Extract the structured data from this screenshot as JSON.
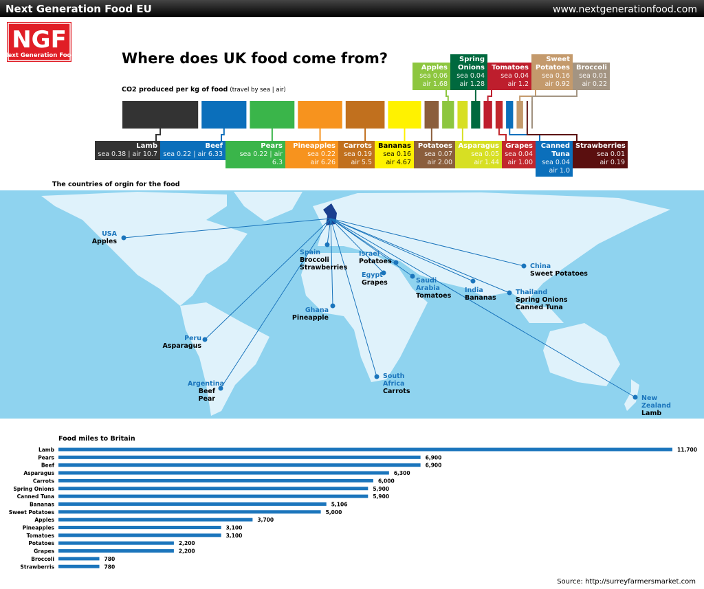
{
  "header": {
    "title": "Next Generation Food EU",
    "url": "www.nextgenerationfood.com"
  },
  "logo": {
    "abbr": "NGF",
    "name": "Next Generation Food"
  },
  "title": "Where does UK food come from?",
  "co2": {
    "heading": "CO2 produced per kg of food",
    "note": "(travel by sea | air)",
    "foods": [
      {
        "name": "Lamb",
        "color": "#333333",
        "air": 10.7,
        "lines": [
          "sea 0.38 | air 10.7"
        ]
      },
      {
        "name": "Beef",
        "color": "#0b6fbb",
        "air": 6.33,
        "lines": [
          "sea 0.22 | air 6.33"
        ]
      },
      {
        "name": "Pears",
        "color": "#3ab54a",
        "air": 6.3,
        "lines": [
          "sea 0.22 | air 6.3"
        ]
      },
      {
        "name": "Pineapples",
        "color": "#f7931e",
        "air": 6.26,
        "lines": [
          "sea 0.22",
          "air 6.26"
        ]
      },
      {
        "name": "Carrots",
        "color": "#c1701e",
        "air": 5.5,
        "lines": [
          "sea 0.19",
          "air 5.5"
        ]
      },
      {
        "name": "Bananas",
        "color": "#fff200",
        "air": 4.67,
        "lines": [
          "sea 0.16",
          "air 4.67"
        ]
      },
      {
        "name": "Potatoes",
        "color": "#8b5e3c",
        "air": 2.0,
        "lines": [
          "sea 0.07",
          "air 2.00"
        ]
      },
      {
        "name": "Apples",
        "color": "#8dc63f",
        "air": 1.68,
        "lines": [
          "sea 0.06",
          "air 1.68"
        ]
      },
      {
        "name": "Asparagus",
        "color": "#d7df23",
        "air": 1.44,
        "lines": [
          "sea 0.05",
          "air 1.44"
        ]
      },
      {
        "name": "Spring Onions",
        "color": "#00693e",
        "air": 1.28,
        "lines": [
          "sea 0.04",
          "air 1.28"
        ]
      },
      {
        "name": "Tomatoes",
        "color": "#be1e2d",
        "air": 1.2,
        "lines": [
          "sea 0.04",
          "air 1.2"
        ]
      },
      {
        "name": "Grapes",
        "color": "#c1272d",
        "air": 1.0,
        "lines": [
          "sea 0.04",
          "air 1.00"
        ]
      },
      {
        "name": "Canned Tuna",
        "color": "#0b6fbb",
        "air": 1.0,
        "lines": [
          "sea 0.04",
          "air 1.0"
        ]
      },
      {
        "name": "Sweet Potatoes",
        "color": "#c49a6c",
        "air": 0.92,
        "lines": [
          "sea 0.16",
          "air 0.92"
        ]
      },
      {
        "name": "Strawberries",
        "color": "#5a0f0f",
        "air": 0.19,
        "lines": [
          "sea 0.01",
          "air 0.19"
        ]
      },
      {
        "name": "Broccoli",
        "color": "#a39482",
        "air": 0.22,
        "lines": [
          "sea 0.01",
          "air 0.22"
        ]
      }
    ]
  },
  "map": {
    "heading": "The countries of orgin for the food",
    "origins": [
      {
        "country": "USA",
        "foods": [
          "Apples"
        ]
      },
      {
        "country": "Spain",
        "foods": [
          "Broccoli",
          "Strawberries"
        ]
      },
      {
        "country": "Israel",
        "foods": [
          "Potatoes"
        ]
      },
      {
        "country": "Egypt",
        "foods": [
          "Grapes"
        ]
      },
      {
        "country": "Saudi Arabia",
        "foods": [
          "Tomatoes"
        ]
      },
      {
        "country": "India",
        "foods": [
          "Bananas"
        ]
      },
      {
        "country": "China",
        "foods": [
          "Sweet Potatoes"
        ]
      },
      {
        "country": "Thailand",
        "foods": [
          "Spring Onions",
          "Canned Tuna"
        ]
      },
      {
        "country": "Ghana",
        "foods": [
          "Pineapple"
        ]
      },
      {
        "country": "Peru",
        "foods": [
          "Asparagus"
        ]
      },
      {
        "country": "Argentina",
        "foods": [
          "Beef",
          "Pear"
        ]
      },
      {
        "country": "South Africa",
        "foods": [
          "Carrots"
        ]
      },
      {
        "country": "New Zealand",
        "foods": [
          "Lamb"
        ]
      }
    ]
  },
  "chart_data": {
    "type": "bar",
    "orientation": "horizontal",
    "title": "Food miles to Britain",
    "color": "#1b75bc",
    "categories": [
      "Lamb",
      "Pears",
      "Beef",
      "Asparagus",
      "Carrots",
      "Spring Onions",
      "Canned Tuna",
      "Bananas",
      "Sweet Potatoes",
      "Apples",
      "Pineapples",
      "Tomatoes",
      "Potatoes",
      "Grapes",
      "Broccoli",
      "Strawberris"
    ],
    "values": [
      11700,
      6900,
      6900,
      6300,
      6000,
      5900,
      5900,
      5106,
      5000,
      3700,
      3100,
      3100,
      2200,
      2200,
      780,
      780
    ],
    "value_labels": [
      "11,700",
      "6,900",
      "6,900",
      "6,300",
      "6,000",
      "5,900",
      "5,900",
      "5,106",
      "5,000",
      "3,700",
      "3,100",
      "3,100",
      "2,200",
      "2,200",
      "780",
      "780"
    ]
  },
  "source": "Source:  http://surreyfarmersmarket.com"
}
